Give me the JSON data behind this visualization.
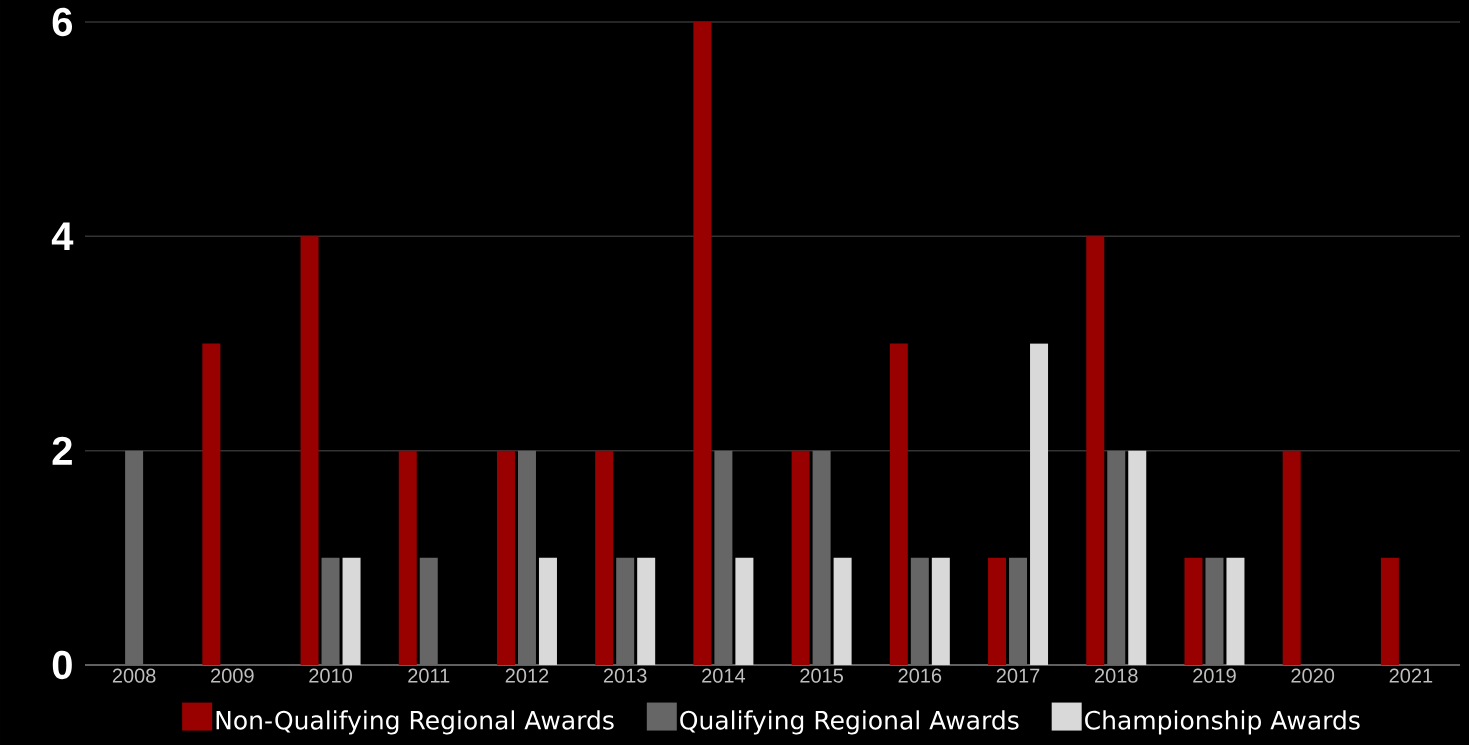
{
  "chart_data": {
    "type": "bar",
    "categories": [
      "2008",
      "2009",
      "2010",
      "2011",
      "2012",
      "2013",
      "2014",
      "2015",
      "2016",
      "2017",
      "2018",
      "2019",
      "2020",
      "2021"
    ],
    "series": [
      {
        "name": "Non-Qualifying Regional Awards",
        "color": "#990000",
        "values": [
          0,
          3,
          4,
          2,
          2,
          2,
          6,
          2,
          3,
          1,
          4,
          1,
          2,
          1
        ]
      },
      {
        "name": "Qualifying Regional Awards",
        "color": "#666666",
        "values": [
          2,
          0,
          1,
          1,
          2,
          1,
          2,
          2,
          1,
          1,
          2,
          1,
          0,
          0
        ]
      },
      {
        "name": "Championship Awards",
        "color": "#d9d9d9",
        "values": [
          0,
          0,
          1,
          0,
          1,
          1,
          1,
          1,
          1,
          3,
          2,
          1,
          0,
          0
        ]
      }
    ],
    "ylim": [
      0,
      6
    ],
    "yticks": [
      0,
      2,
      4,
      6
    ],
    "grid": "y",
    "legend": "bottom"
  }
}
